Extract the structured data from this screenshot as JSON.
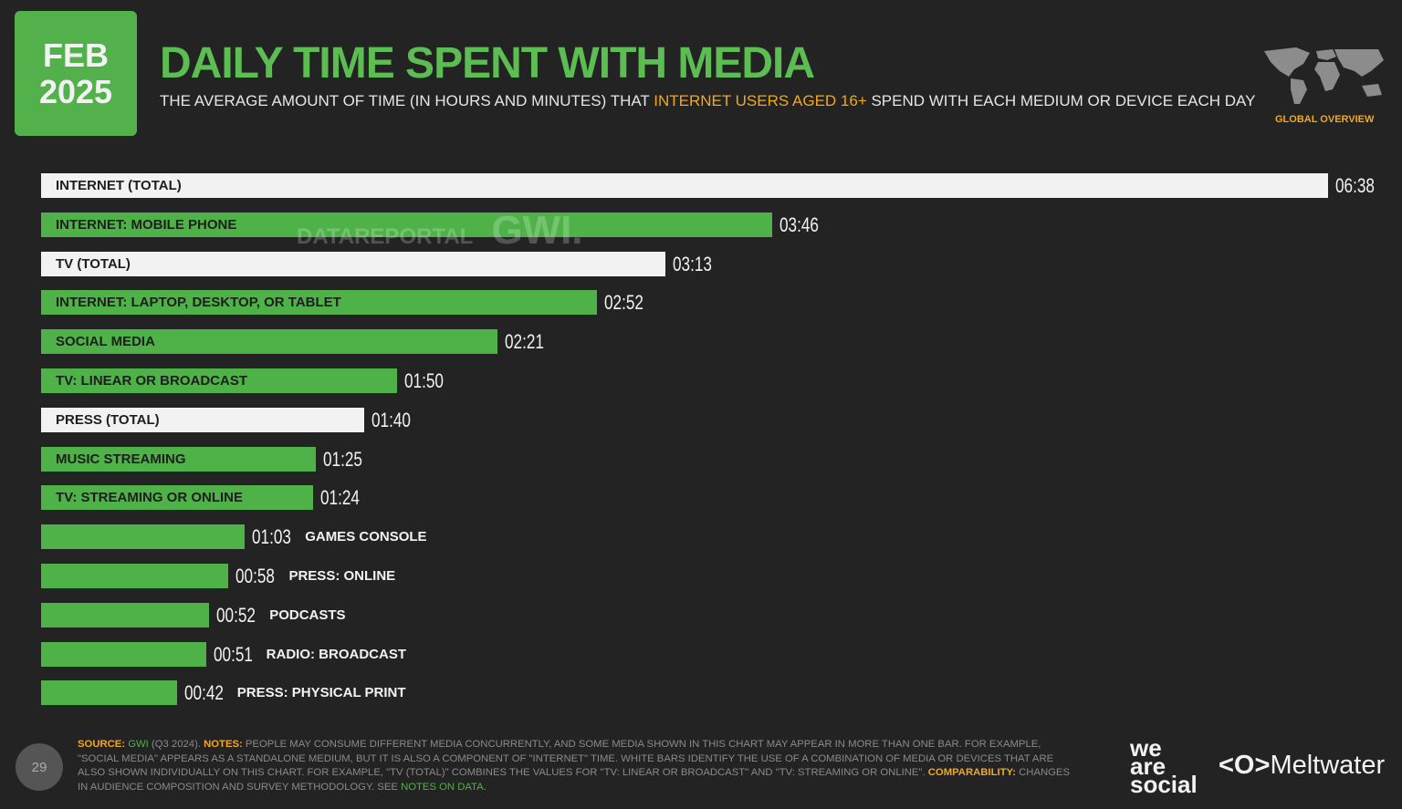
{
  "badge": {
    "month": "FEB",
    "year": "2025"
  },
  "header": {
    "title": "DAILY TIME SPENT WITH MEDIA",
    "subtitle_pre": "THE AVERAGE AMOUNT OF TIME (IN HOURS AND MINUTES) THAT ",
    "subtitle_highlight": "INTERNET USERS AGED 16+",
    "subtitle_post": " SPEND WITH EACH MEDIUM OR DEVICE EACH DAY",
    "region": "GLOBAL OVERVIEW"
  },
  "watermark": {
    "left": "DATAREPORTAL",
    "right": "GWI."
  },
  "colors": {
    "green": "#4fb248",
    "white": "#f2f2f2",
    "accent": "#f2a81d",
    "background": "#232323"
  },
  "chart_data": {
    "type": "bar",
    "orientation": "horizontal",
    "unit": "hh:mm",
    "categories": [
      "INTERNET (TOTAL)",
      "INTERNET: MOBILE PHONE",
      "TV (TOTAL)",
      "INTERNET: LAPTOP, DESKTOP, OR TABLET",
      "SOCIAL MEDIA",
      "TV: LINEAR OR BROADCAST",
      "PRESS (TOTAL)",
      "MUSIC STREAMING",
      "TV: STREAMING OR ONLINE",
      "GAMES CONSOLE",
      "PRESS: ONLINE",
      "PODCASTS",
      "RADIO: BROADCAST",
      "PRESS: PHYSICAL PRINT"
    ],
    "values": [
      "06:38",
      "03:46",
      "03:13",
      "02:52",
      "02:21",
      "01:50",
      "01:40",
      "01:25",
      "01:24",
      "01:03",
      "00:58",
      "00:52",
      "00:51",
      "00:42"
    ],
    "bar_colors": [
      "white",
      "green",
      "white",
      "green",
      "green",
      "green",
      "white",
      "green",
      "green",
      "green",
      "green",
      "green",
      "green",
      "green"
    ],
    "grid": false
  },
  "footer": {
    "source_label": "SOURCE:",
    "source": "GWI",
    "source_period": " (Q3 2024). ",
    "notes_label": "NOTES:",
    "notes": " PEOPLE MAY CONSUME DIFFERENT MEDIA CONCURRENTLY, AND SOME MEDIA SHOWN IN THIS CHART MAY APPEAR IN MORE THAN ONE BAR. FOR EXAMPLE, \"SOCIAL MEDIA\" APPEARS AS A STANDALONE MEDIUM, BUT IT IS ALSO A COMPONENT OF \"INTERNET\" TIME. WHITE BARS IDENTIFY THE USE OF A COMBINATION OF MEDIA OR DEVICES THAT ARE ALSO SHOWN INDIVIDUALLY ON THIS CHART. FOR EXAMPLE, \"TV (TOTAL)\" COMBINES THE VALUES FOR \"TV: LINEAR OR BROADCAST\" AND \"TV: STREAMING OR ONLINE\". ",
    "comparability_label": "COMPARABILITY:",
    "comparability": " CHANGES IN AUDIENCE COMPOSITION AND SURVEY METHODOLOGY. SEE ",
    "notes_link": "NOTES ON DATA",
    "end": ".",
    "page_number": "29",
    "brand_1": "we are social",
    "brand_2": "Meltwater"
  }
}
